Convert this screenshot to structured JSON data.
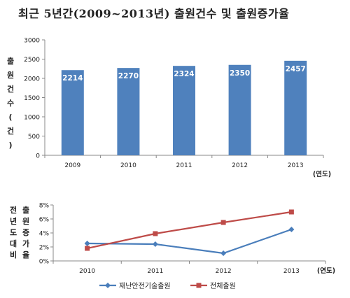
{
  "title": "최근 5년간(2009~2013년) 출원건수 및 출원증가율",
  "chart_data": [
    {
      "type": "bar",
      "categories": [
        "2009",
        "2010",
        "2011",
        "2012",
        "2013"
      ],
      "values": [
        2214,
        2270,
        2324,
        2350,
        2457
      ],
      "ylabel": "출원건수(건)",
      "xlabel": "(연도)",
      "ylim": [
        0,
        3000
      ],
      "yticks": [
        0,
        500,
        1000,
        1500,
        2000,
        2500,
        3000
      ],
      "grid": false,
      "color": "#4f81bd"
    },
    {
      "type": "line",
      "categories": [
        "2010",
        "2011",
        "2012",
        "2013"
      ],
      "series": [
        {
          "name": "재난안전기술출원",
          "values": [
            2.5,
            2.4,
            1.1,
            4.5
          ],
          "color": "#4a7ebb"
        },
        {
          "name": "전체출원",
          "values": [
            1.8,
            3.9,
            5.5,
            7.0
          ],
          "color": "#be4b48"
        }
      ],
      "ylabel_left": "전년도대비",
      "ylabel_right": "출원증가율",
      "xlabel": "(연도)",
      "ylim": [
        0,
        8
      ],
      "yticks": [
        "0%",
        "2%",
        "4%",
        "6%",
        "8%"
      ],
      "legend": "bottom"
    }
  ]
}
